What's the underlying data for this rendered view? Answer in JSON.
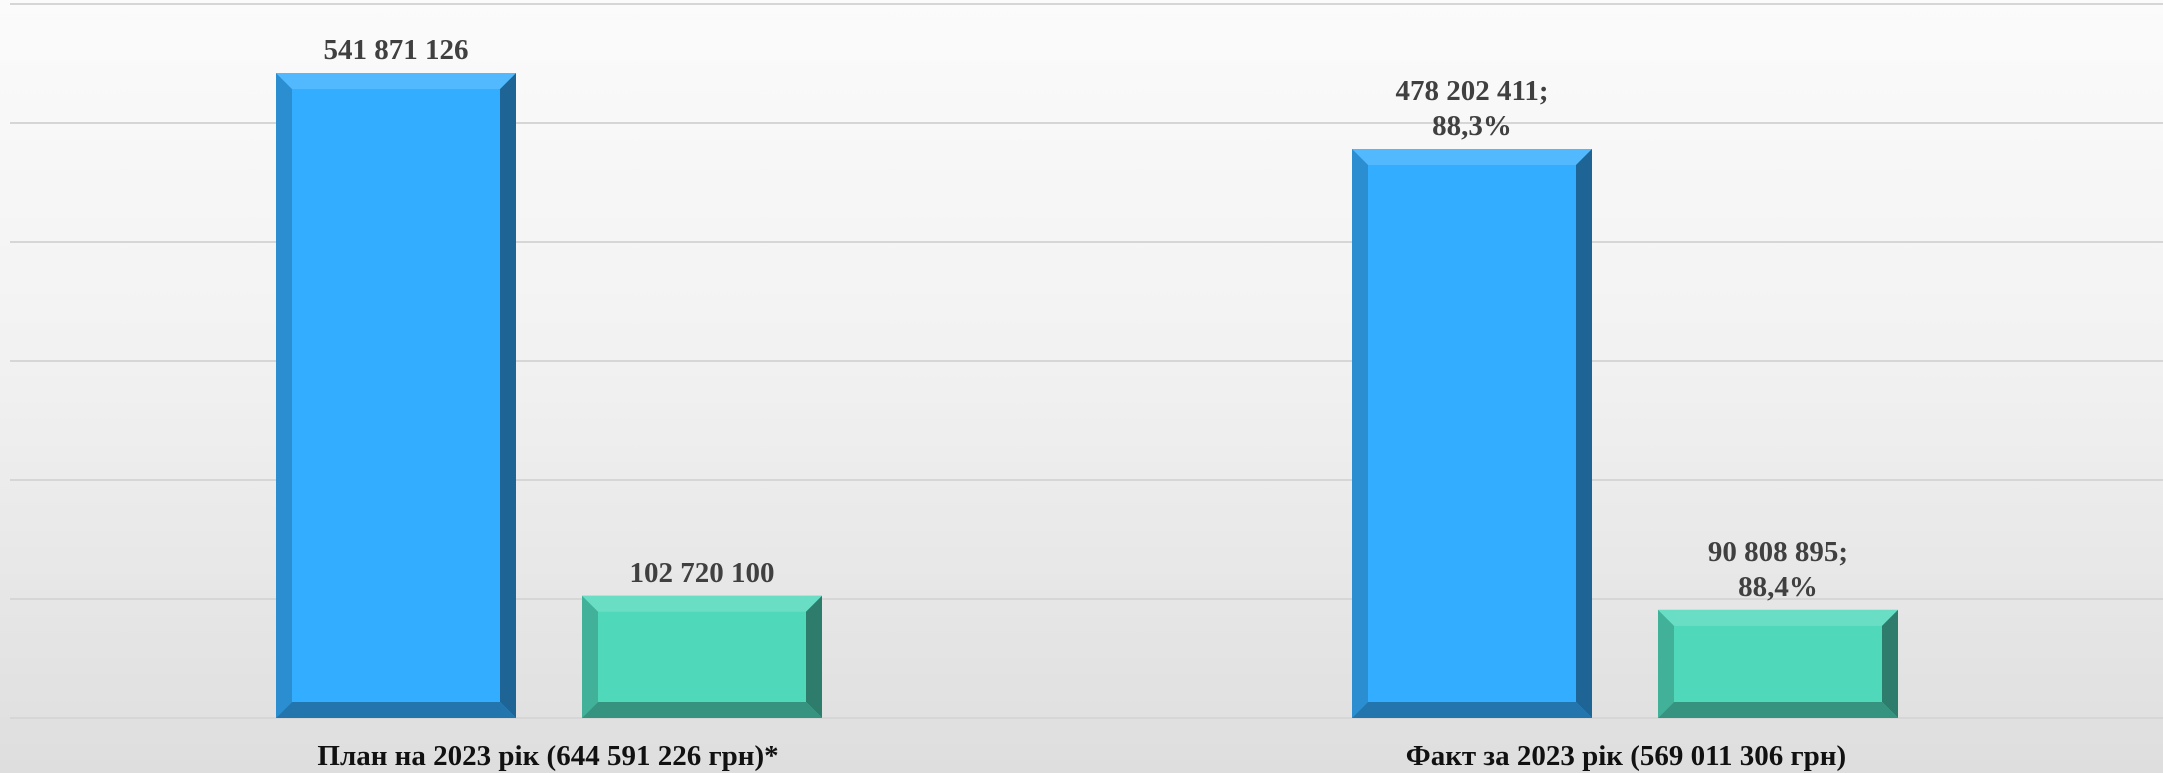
{
  "chart_data": {
    "type": "bar",
    "title": "",
    "xlabel": "",
    "ylabel": "",
    "ylim": [
      0,
      600000000
    ],
    "grid": true,
    "legend": "none",
    "categories": [
      "План на 2023 рік (644 591 226 грн)*",
      "Факт за 2023 рік (569 011 306 грн)"
    ],
    "series": [
      {
        "color": "#33adff",
        "values": [
          541871126,
          478202411
        ],
        "labels": [
          [
            "541 871 126"
          ],
          [
            "478 202 411;",
            "88,3%"
          ]
        ]
      },
      {
        "color": "#50d8bb",
        "values": [
          102720100,
          90808895
        ],
        "labels": [
          [
            "102 720 100"
          ],
          [
            "90 808 895;",
            "88,4%"
          ]
        ]
      }
    ]
  }
}
